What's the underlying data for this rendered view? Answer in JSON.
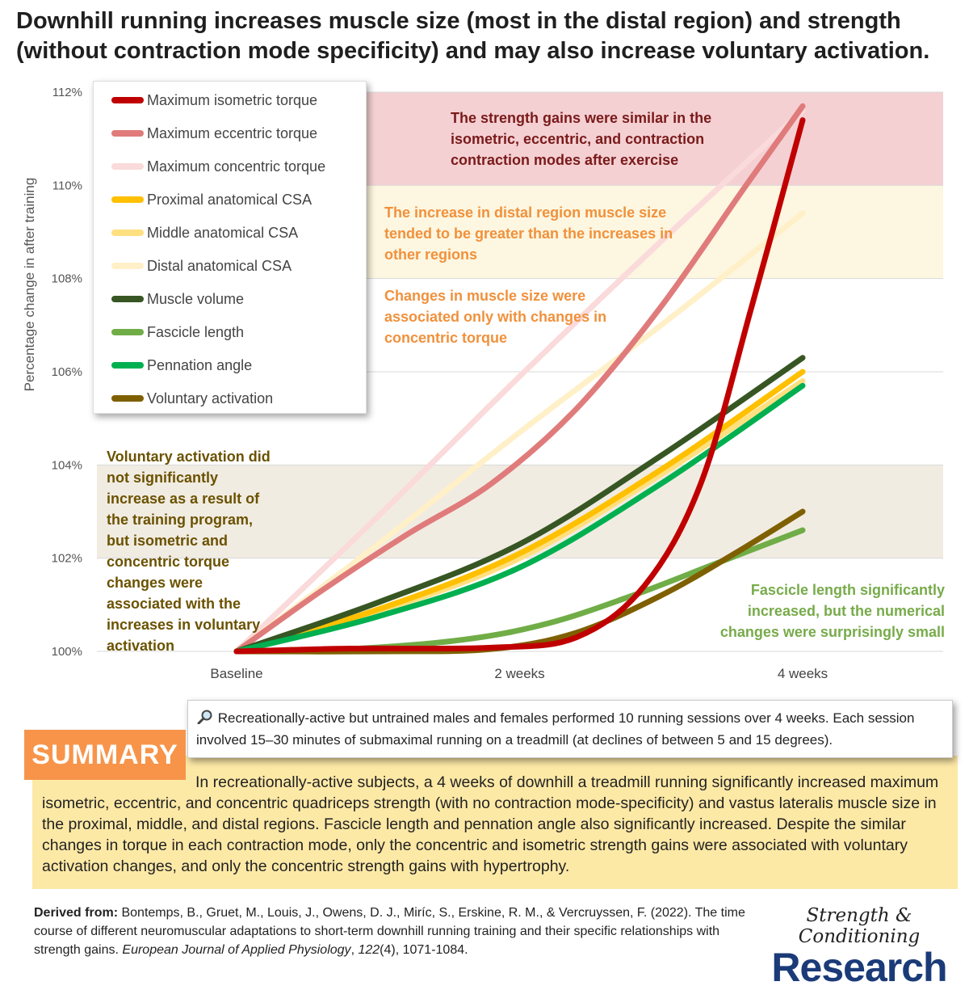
{
  "title": "Downhill running increases muscle size (most in the distal region) and strength (without contraction mode specificity) and may also increase voluntary activation.",
  "chart_data": {
    "type": "line",
    "categories": [
      "Baseline",
      "2 weeks",
      "4 weeks"
    ],
    "ylabel": "Percentage change in after training",
    "ylim": [
      100,
      112
    ],
    "yticks": [
      "100%",
      "102%",
      "104%",
      "106%",
      "108%",
      "110%",
      "112%"
    ],
    "legend_position": "top-left",
    "series": [
      {
        "name": "Maximum isometric torque",
        "color": "#c00000",
        "values": [
          100,
          100.1,
          111.4
        ],
        "curve": [
          [
            0,
            100
          ],
          [
            0.2,
            100.06
          ],
          [
            0.45,
            100.08
          ],
          [
            0.6,
            100.3
          ],
          [
            0.72,
            101.4
          ],
          [
            0.82,
            103.6
          ],
          [
            0.91,
            107.4
          ],
          [
            1,
            111.4
          ]
        ]
      },
      {
        "name": "Maximum eccentric torque",
        "color": "#e07b7b",
        "values": [
          100,
          103.3,
          111.7
        ],
        "curve": [
          [
            0,
            100
          ],
          [
            0.15,
            101.3
          ],
          [
            0.3,
            102.5
          ],
          [
            0.45,
            103.6
          ],
          [
            0.6,
            105.2
          ],
          [
            0.75,
            107.4
          ],
          [
            0.9,
            110.0
          ],
          [
            1,
            111.7
          ]
        ]
      },
      {
        "name": "Maximum concentric torque",
        "color": "#fadada",
        "values": [
          100,
          105.9,
          111.6
        ],
        "curve": [
          [
            0,
            100
          ],
          [
            0.25,
            102.9
          ],
          [
            0.5,
            105.9
          ],
          [
            0.75,
            108.8
          ],
          [
            1,
            111.6
          ]
        ]
      },
      {
        "name": "Proximal anatomical CSA",
        "color": "#ffc000",
        "values": [
          100,
          102.1,
          106.0
        ],
        "curve": [
          [
            0,
            100
          ],
          [
            0.25,
            100.9
          ],
          [
            0.5,
            102.1
          ],
          [
            0.75,
            103.9
          ],
          [
            1,
            106.0
          ]
        ]
      },
      {
        "name": "Middle anatomical CSA",
        "color": "#ffe080",
        "values": [
          100,
          102.0,
          105.8
        ],
        "curve": [
          [
            0,
            100
          ],
          [
            0.25,
            100.85
          ],
          [
            0.5,
            102.0
          ],
          [
            0.75,
            103.8
          ],
          [
            1,
            105.8
          ]
        ]
      },
      {
        "name": "Distal anatomical CSA",
        "color": "#fff0c8",
        "values": [
          100,
          104.7,
          109.4
        ],
        "curve": [
          [
            0,
            100
          ],
          [
            0.25,
            102.3
          ],
          [
            0.5,
            104.7
          ],
          [
            0.75,
            107.0
          ],
          [
            1,
            109.4
          ]
        ]
      },
      {
        "name": "Muscle volume",
        "color": "#375623",
        "values": [
          100,
          102.3,
          106.3
        ],
        "curve": [
          [
            0,
            100
          ],
          [
            0.25,
            101.05
          ],
          [
            0.5,
            102.3
          ],
          [
            0.75,
            104.2
          ],
          [
            1,
            106.3
          ]
        ]
      },
      {
        "name": "Fascicle length",
        "color": "#70ad47",
        "values": [
          100,
          100.5,
          102.6
        ],
        "curve": [
          [
            0,
            100
          ],
          [
            0.2,
            100.05
          ],
          [
            0.4,
            100.25
          ],
          [
            0.55,
            100.6
          ],
          [
            0.7,
            101.2
          ],
          [
            0.85,
            101.9
          ],
          [
            1,
            102.6
          ]
        ]
      },
      {
        "name": "Pennation angle",
        "color": "#00b050",
        "values": [
          100,
          101.8,
          105.7
        ],
        "curve": [
          [
            0,
            100
          ],
          [
            0.25,
            100.75
          ],
          [
            0.5,
            101.8
          ],
          [
            0.75,
            103.6
          ],
          [
            1,
            105.7
          ]
        ]
      },
      {
        "name": "Voluntary activation",
        "color": "#7f6000",
        "values": [
          100,
          100.1,
          103.0
        ],
        "curve": [
          [
            0,
            100
          ],
          [
            0.25,
            100.0
          ],
          [
            0.45,
            100.05
          ],
          [
            0.6,
            100.4
          ],
          [
            0.75,
            101.2
          ],
          [
            0.88,
            102.1
          ],
          [
            1,
            103.0
          ]
        ]
      }
    ],
    "bands": [
      {
        "from": 110,
        "to": 112,
        "color": "#f4d0d3"
      },
      {
        "from": 108,
        "to": 110,
        "color": "#fdf6e0"
      },
      {
        "from": 102,
        "to": 104,
        "color": "#f1ece2"
      }
    ],
    "annotations": {
      "strength": "The strength gains were similar in the isometric, eccentric, and contraction contraction modes after exercise",
      "distal": "The increase in distal region muscle size tended to be greater than the increases in other regions",
      "size": "Changes in muscle size were associated only with changes in concentric  torque",
      "activation": "Voluntary activation did not significantly increase as a result of the training program, but isometric and concentric torque changes were associated with the increases in voluntary activation",
      "fascicle": "Fascicle length significantly increased, but the numerical changes were surprisingly small"
    }
  },
  "method": {
    "icon": "magnifier-icon",
    "text": "Recreationally-active but untrained males and females performed 10 running sessions over 4 weeks. Each session involved 15–30 minutes of submaximal running on a treadmill (at declines of between 5 and 15 degrees)."
  },
  "summary": {
    "label": "SUMMARY",
    "text": "In recreationally-active subjects, a 4 weeks of downhill a treadmill running significantly increased maximum isometric, eccentric, and concentric quadriceps strength (with no contraction mode-specificity) and vastus lateralis muscle size in the proximal, middle, and distal regions. Fascicle length and pennation angle also significantly increased. Despite the similar changes in torque in each contraction mode, only the concentric and isometric strength gains were associated with voluntary activation changes, and only the concentric strength gains with hypertrophy."
  },
  "source": {
    "label": "Derived from:",
    "authors": "Bontemps, B., Gruet, M., Louis, J., Owens, D. J., Miríc, S., Erskine, R. M., & Vercruyssen, F. (2022). The time course of different neuromuscular adaptations to short-term downhill running training and their specific relationships with strength gains.",
    "journal": "European Journal of Applied Physiology",
    "volume": "122",
    "issue_pages": "(4), 1071-1084."
  },
  "brand": {
    "top": "Strength & Conditioning",
    "bottom": "Research"
  }
}
